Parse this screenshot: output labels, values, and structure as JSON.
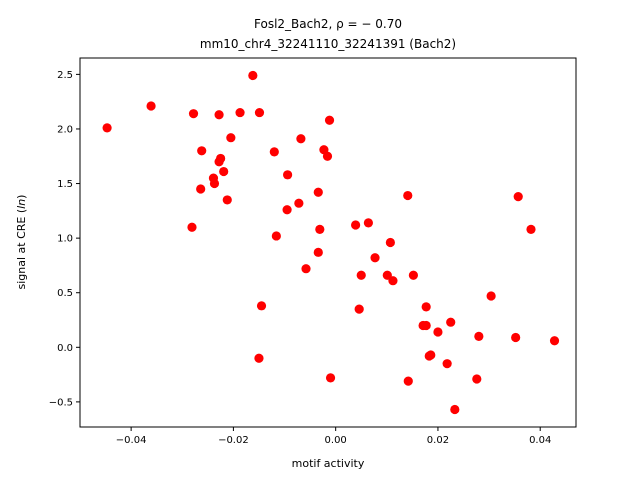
{
  "chart_data": {
    "type": "scatter",
    "title_line1_prefix": "Fosl2_Bach2, ",
    "title_line1_stat": "ρ = − 0.70",
    "title_line2": "mm10_chr4_32241110_32241391 (Bach2)",
    "xlabel": "motif activity",
    "ylabel_prefix": "signal at CRE (",
    "ylabel_italic": "ln",
    "ylabel_suffix": ")",
    "xlim": [
      -0.05,
      0.047
    ],
    "ylim": [
      -0.73,
      2.65
    ],
    "xticks": [
      -0.04,
      -0.02,
      0.0,
      0.02,
      0.04
    ],
    "xtick_labels": [
      "−0.04",
      "−0.02",
      "0.00",
      "0.02",
      "0.04"
    ],
    "yticks": [
      -0.5,
      0.0,
      0.5,
      1.0,
      1.5,
      2.0,
      2.5
    ],
    "ytick_labels": [
      "−0.5",
      "0.0",
      "0.5",
      "1.0",
      "1.5",
      "2.0",
      "2.5"
    ],
    "marker_color": "#ff0000",
    "grid": false,
    "points": [
      {
        "x": -0.0447,
        "y": 2.01
      },
      {
        "x": -0.0361,
        "y": 2.21
      },
      {
        "x": -0.0278,
        "y": 2.14
      },
      {
        "x": -0.0281,
        "y": 1.1
      },
      {
        "x": -0.0262,
        "y": 1.8
      },
      {
        "x": -0.0264,
        "y": 1.45
      },
      {
        "x": -0.0239,
        "y": 1.55
      },
      {
        "x": -0.0237,
        "y": 1.5
      },
      {
        "x": -0.0228,
        "y": 1.7
      },
      {
        "x": -0.0225,
        "y": 1.73
      },
      {
        "x": -0.0228,
        "y": 2.13
      },
      {
        "x": -0.0219,
        "y": 1.61
      },
      {
        "x": -0.0212,
        "y": 1.35
      },
      {
        "x": -0.0205,
        "y": 1.92
      },
      {
        "x": -0.0187,
        "y": 2.15
      },
      {
        "x": -0.0162,
        "y": 2.49
      },
      {
        "x": -0.0149,
        "y": 2.15
      },
      {
        "x": -0.015,
        "y": -0.1
      },
      {
        "x": -0.0145,
        "y": 0.38
      },
      {
        "x": -0.012,
        "y": 1.79
      },
      {
        "x": -0.0116,
        "y": 1.02
      },
      {
        "x": -0.0094,
        "y": 1.58
      },
      {
        "x": -0.0095,
        "y": 1.26
      },
      {
        "x": -0.0072,
        "y": 1.32
      },
      {
        "x": -0.0068,
        "y": 1.91
      },
      {
        "x": -0.0058,
        "y": 0.72
      },
      {
        "x": -0.0034,
        "y": 1.42
      },
      {
        "x": -0.0031,
        "y": 1.08
      },
      {
        "x": -0.0034,
        "y": 0.87
      },
      {
        "x": -0.0023,
        "y": 1.81
      },
      {
        "x": -0.0016,
        "y": 1.75
      },
      {
        "x": -0.0012,
        "y": 2.08
      },
      {
        "x": -0.001,
        "y": -0.28
      },
      {
        "x": 0.0039,
        "y": 1.12
      },
      {
        "x": 0.0046,
        "y": 0.35
      },
      {
        "x": 0.005,
        "y": 0.66
      },
      {
        "x": 0.0064,
        "y": 1.14
      },
      {
        "x": 0.0077,
        "y": 0.82
      },
      {
        "x": 0.0101,
        "y": 0.66
      },
      {
        "x": 0.0107,
        "y": 0.96
      },
      {
        "x": 0.0112,
        "y": 0.61
      },
      {
        "x": 0.0141,
        "y": 1.39
      },
      {
        "x": 0.0142,
        "y": -0.31
      },
      {
        "x": 0.0152,
        "y": 0.66
      },
      {
        "x": 0.0171,
        "y": 0.2
      },
      {
        "x": 0.0177,
        "y": 0.2
      },
      {
        "x": 0.0177,
        "y": 0.37
      },
      {
        "x": 0.0183,
        "y": -0.08
      },
      {
        "x": 0.0186,
        "y": -0.07
      },
      {
        "x": 0.02,
        "y": 0.14
      },
      {
        "x": 0.0218,
        "y": -0.15
      },
      {
        "x": 0.0225,
        "y": 0.23
      },
      {
        "x": 0.0233,
        "y": -0.57
      },
      {
        "x": 0.0276,
        "y": -0.29
      },
      {
        "x": 0.028,
        "y": 0.1
      },
      {
        "x": 0.0304,
        "y": 0.47
      },
      {
        "x": 0.0352,
        "y": 0.09
      },
      {
        "x": 0.0357,
        "y": 1.38
      },
      {
        "x": 0.0382,
        "y": 1.08
      },
      {
        "x": 0.0428,
        "y": 0.06
      }
    ]
  }
}
